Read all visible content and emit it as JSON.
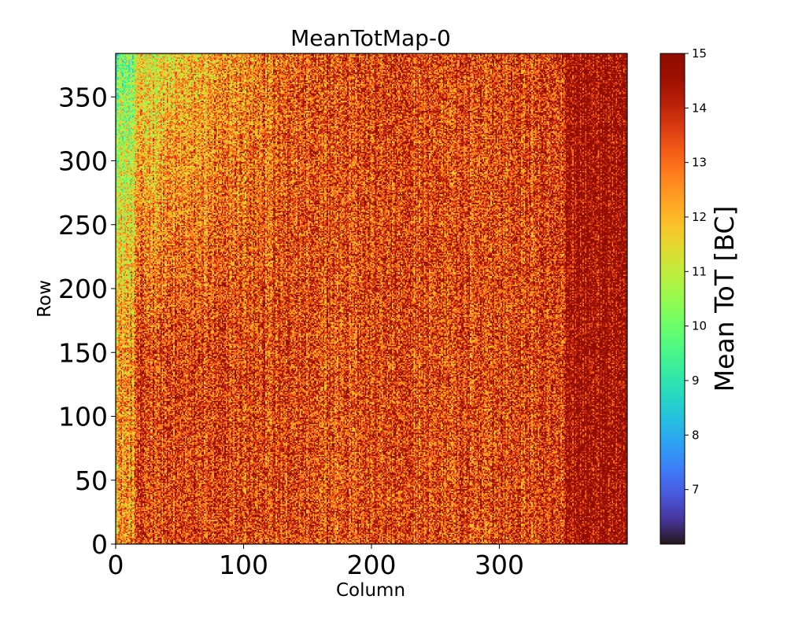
{
  "chart_data": {
    "type": "heatmap",
    "title": "MeanTotMap-0",
    "xlabel": "Column",
    "ylabel": "Row",
    "xlim": [
      0,
      400
    ],
    "ylim": [
      0,
      384
    ],
    "x_ticks": [
      0,
      100,
      200,
      300
    ],
    "y_ticks": [
      0,
      50,
      100,
      150,
      200,
      250,
      300,
      350
    ],
    "colorbar": {
      "label": "Mean ToT [BC]",
      "colormap": "turbo",
      "range": [
        6,
        15
      ],
      "ticks": [
        7,
        8,
        9,
        10,
        11,
        12,
        13,
        14,
        15
      ]
    },
    "description_of_pattern": {
      "typical_value": 13.5,
      "right_region_value": 14.8,
      "upper_left_region_value": 11.0
    }
  }
}
